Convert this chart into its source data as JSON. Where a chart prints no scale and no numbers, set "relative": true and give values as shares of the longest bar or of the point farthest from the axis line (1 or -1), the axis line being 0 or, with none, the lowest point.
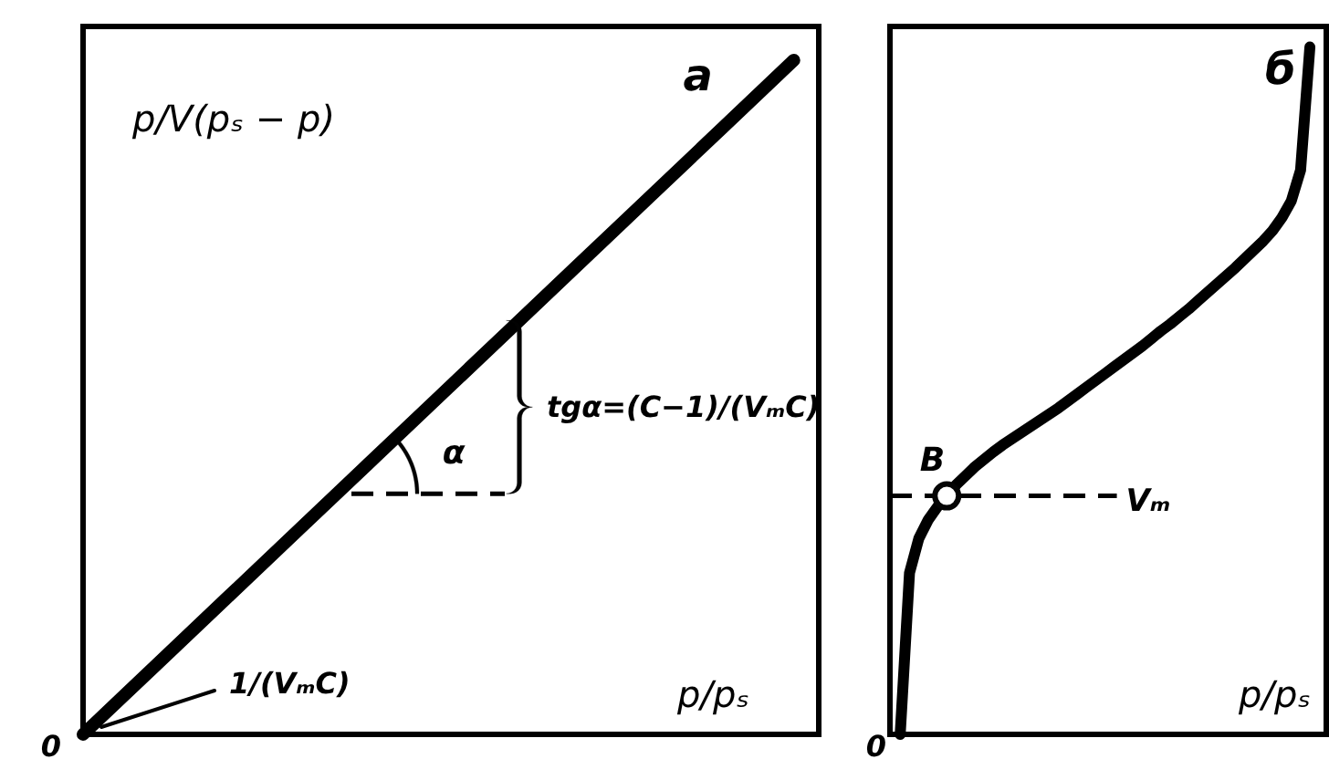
{
  "chart_data": [
    {
      "type": "line",
      "title": "а",
      "xlabel": "p/pₛ",
      "ylabel": "p/V(pₛ − p)",
      "categories": [
        null,
        null,
        null,
        null,
        null,
        null,
        null,
        null,
        null,
        null,
        null
      ],
      "relative": true,
      "grid": false,
      "series": [
        {
          "color": "#000000",
          "values": [
            0,
            0.1,
            0.2,
            0.3,
            0.4,
            0.5,
            0.6,
            0.7,
            0.8,
            0.9,
            1
          ]
        }
      ],
      "ref_lines": [
        {
          "axis": "y",
          "value": 0.357,
          "line_style": "dashed"
        }
      ],
      "annotations": [
        "0",
        "1/(VₘC)",
        "α",
        "tgα=(C−1)/(VₘC)"
      ]
    },
    {
      "type": "line",
      "title": "б",
      "xlabel": "p/pₛ",
      "categories": [
        null,
        null,
        null,
        null,
        null,
        null,
        null,
        null,
        null,
        null,
        null,
        null,
        null,
        null,
        null,
        null,
        null,
        null,
        null,
        null,
        null,
        null,
        null,
        null,
        null,
        null,
        null,
        null,
        null,
        null,
        null,
        null,
        null,
        null,
        null,
        null,
        null,
        null,
        null,
        null,
        null,
        null,
        null,
        null,
        null
      ],
      "relative": true,
      "grid": false,
      "series": [
        {
          "color": "#000000",
          "values": [
            0,
            0.235,
            0.285,
            0.312,
            0.331,
            0.347,
            0.363,
            0.376,
            0.389,
            0.4,
            0.411,
            0.421,
            0.43,
            0.439,
            0.448,
            0.457,
            0.466,
            0.475,
            0.485,
            0.495,
            0.505,
            0.515,
            0.525,
            0.535,
            0.545,
            0.555,
            0.565,
            0.576,
            0.587,
            0.597,
            0.608,
            0.619,
            0.631,
            0.643,
            0.655,
            0.667,
            0.679,
            0.692,
            0.705,
            0.718,
            0.733,
            0.752,
            0.776,
            0.821,
            1
          ]
        }
      ],
      "ref_lines": [
        {
          "axis": "y",
          "value": 0.347,
          "label": "Vₘ",
          "line_style": "dashed"
        }
      ],
      "annotations": [
        "0",
        "B"
      ]
    }
  ]
}
